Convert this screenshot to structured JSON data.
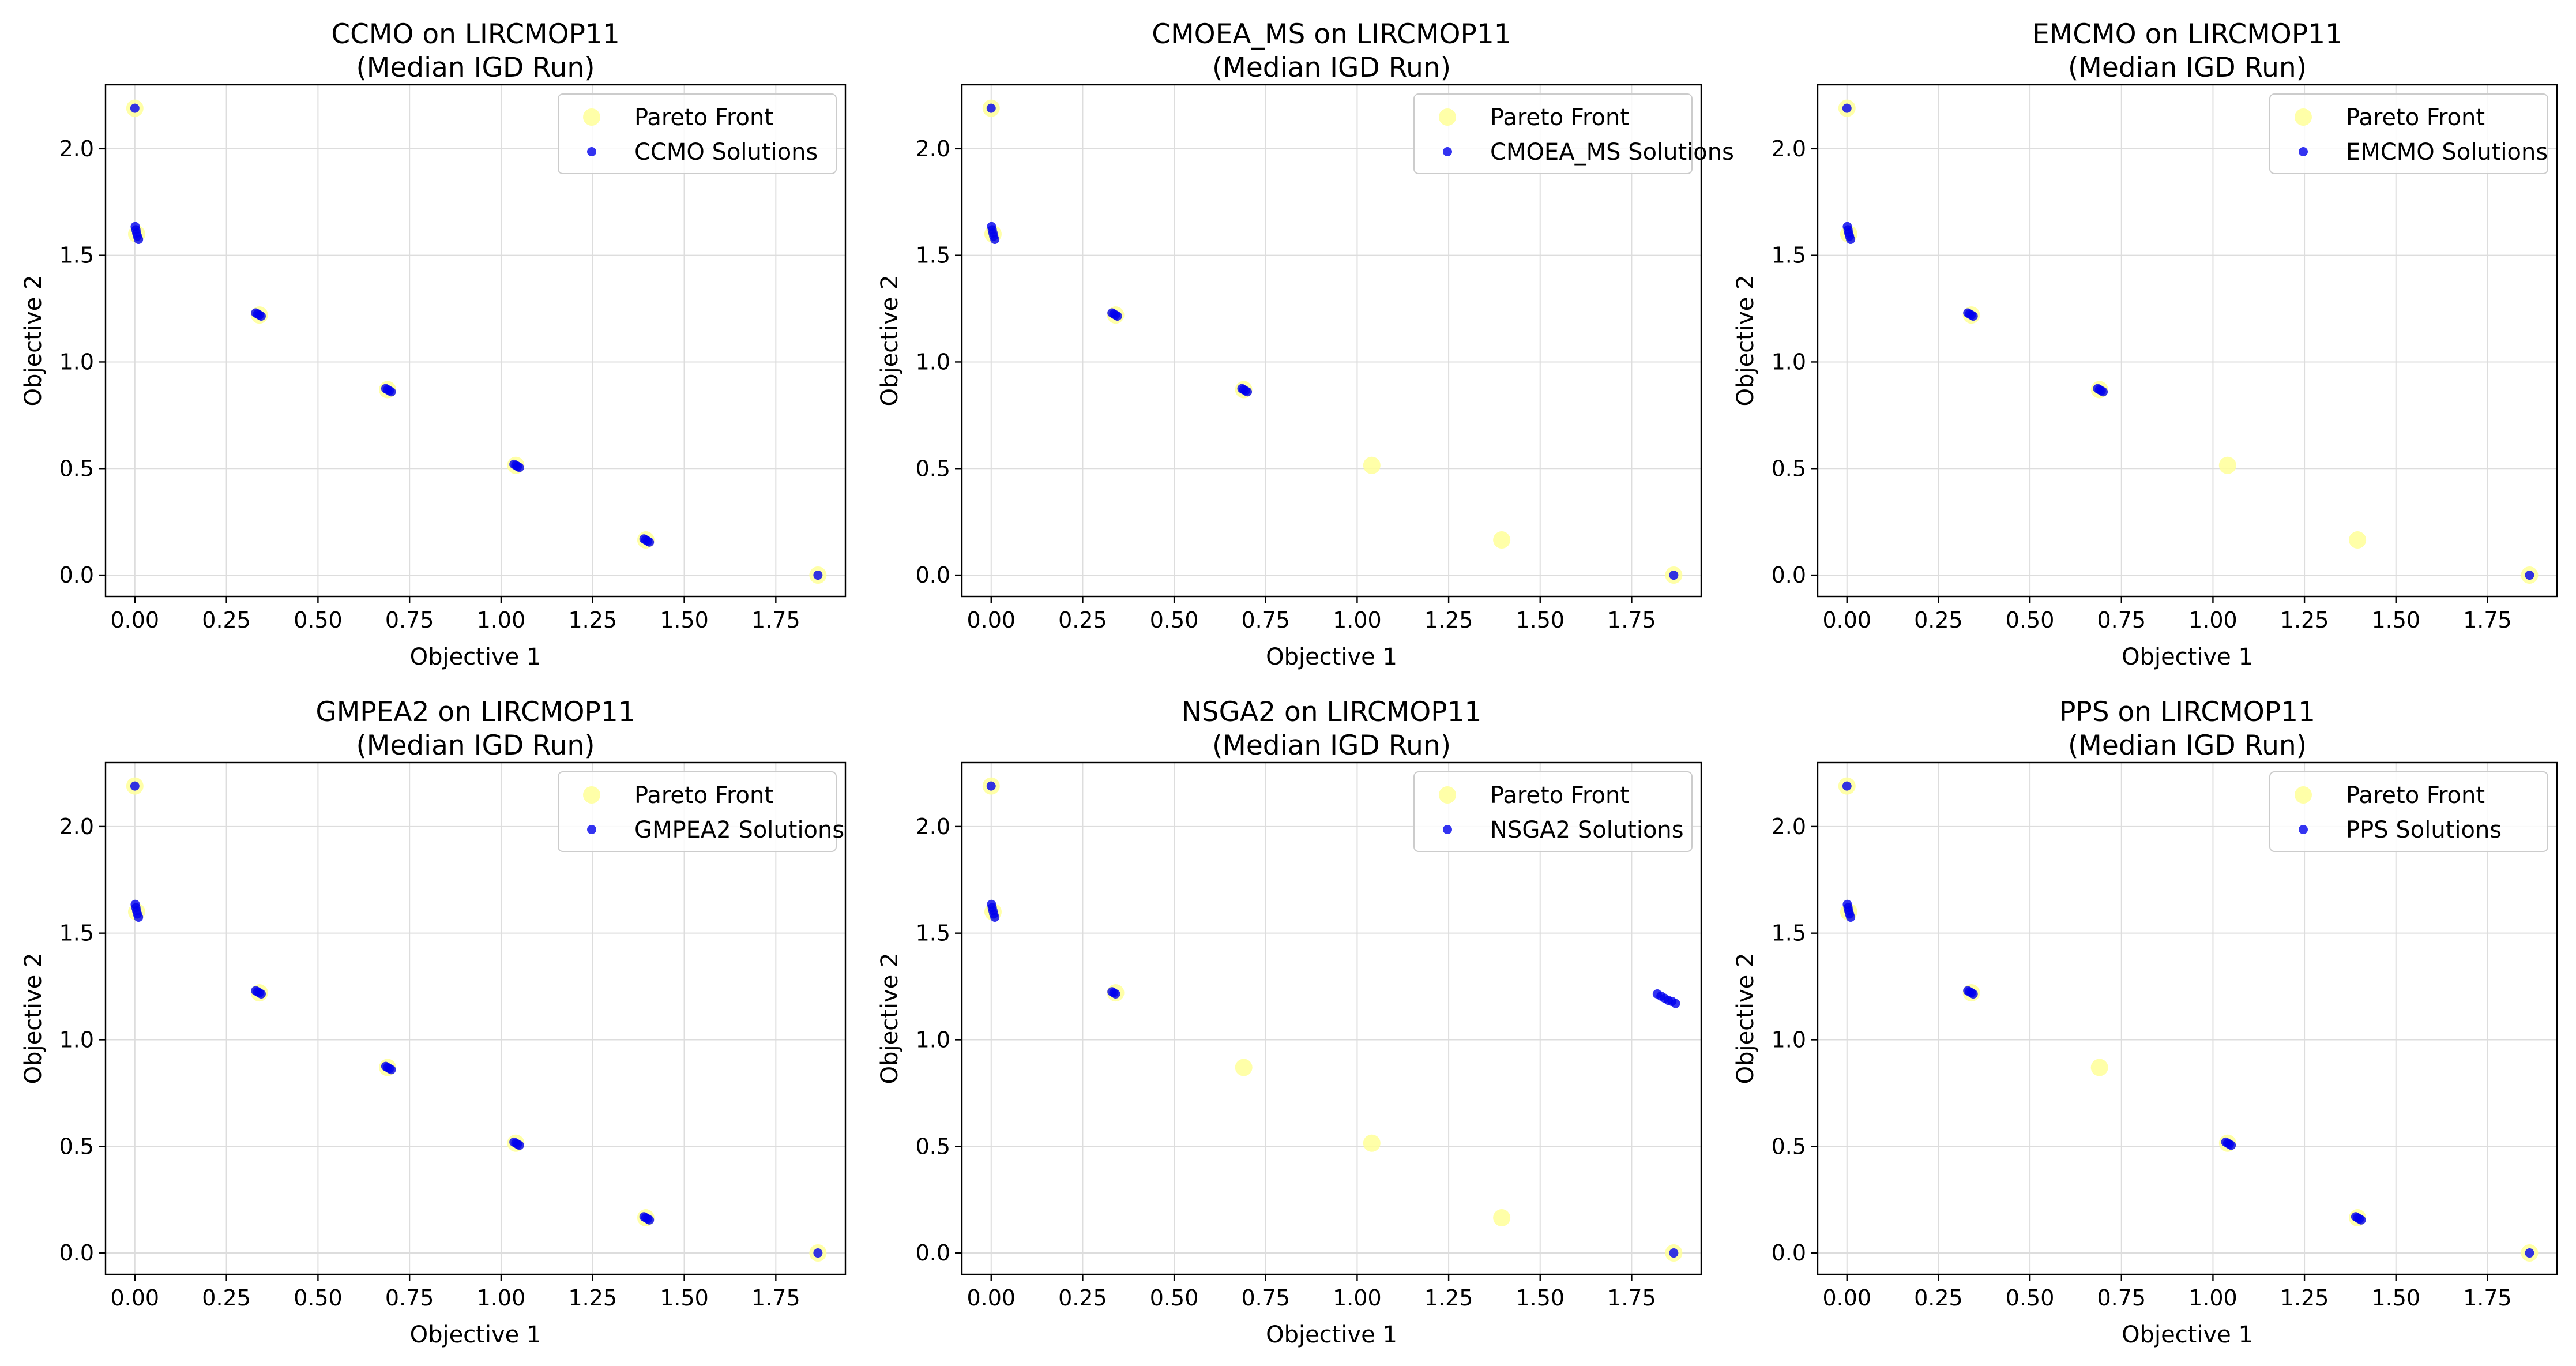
{
  "figure": {
    "background": "#ffffff"
  },
  "colors": {
    "pareto": "#ffff99",
    "solutions": "#0000ee",
    "grid": "#dddddd",
    "axis": "#000000"
  },
  "chart_data": [
    {
      "type": "scatter",
      "title_line1": "CCMO on LIRCMOP11",
      "title_line2": "(Median IGD Run)",
      "xlabel": "Objective 1",
      "ylabel": "Objective 2",
      "xlim": [
        -0.08,
        1.94
      ],
      "ylim": [
        -0.1,
        2.3
      ],
      "xticks": [
        0.0,
        0.25,
        0.5,
        0.75,
        1.0,
        1.25,
        1.5,
        1.75
      ],
      "xtick_labels": [
        "0.00",
        "0.25",
        "0.50",
        "0.75",
        "1.00",
        "1.25",
        "1.50",
        "1.75"
      ],
      "yticks": [
        0.0,
        0.5,
        1.0,
        1.5,
        2.0
      ],
      "ytick_labels": [
        "0.0",
        "0.5",
        "1.0",
        "1.5",
        "2.0"
      ],
      "grid": true,
      "legend_position": "upper right",
      "series": [
        {
          "name": "Pareto Front",
          "color": "#ffff99",
          "marker": "large",
          "x": [
            0.0,
            0.005,
            0.34,
            0.69,
            1.04,
            1.395,
            1.865
          ],
          "y": [
            2.19,
            1.6,
            1.22,
            0.87,
            0.515,
            0.165,
            0.0
          ]
        },
        {
          "name": "CCMO Solutions",
          "color": "#0000ee",
          "marker": "small",
          "x": [
            0.0,
            0.001,
            0.003,
            0.005,
            0.007,
            0.01,
            0.33,
            0.335,
            0.34,
            0.345,
            0.685,
            0.69,
            0.695,
            0.7,
            1.035,
            1.04,
            1.045,
            1.05,
            1.39,
            1.395,
            1.4,
            1.405,
            1.865
          ],
          "y": [
            2.19,
            1.635,
            1.62,
            1.605,
            1.59,
            1.575,
            1.23,
            1.225,
            1.22,
            1.215,
            0.875,
            0.87,
            0.865,
            0.86,
            0.52,
            0.515,
            0.51,
            0.505,
            0.17,
            0.165,
            0.16,
            0.155,
            0.0
          ]
        }
      ]
    },
    {
      "type": "scatter",
      "title_line1": "CMOEA_MS on LIRCMOP11",
      "title_line2": "(Median IGD Run)",
      "xlabel": "Objective 1",
      "ylabel": "Objective 2",
      "xlim": [
        -0.08,
        1.94
      ],
      "ylim": [
        -0.1,
        2.3
      ],
      "xticks": [
        0.0,
        0.25,
        0.5,
        0.75,
        1.0,
        1.25,
        1.5,
        1.75
      ],
      "xtick_labels": [
        "0.00",
        "0.25",
        "0.50",
        "0.75",
        "1.00",
        "1.25",
        "1.50",
        "1.75"
      ],
      "yticks": [
        0.0,
        0.5,
        1.0,
        1.5,
        2.0
      ],
      "ytick_labels": [
        "0.0",
        "0.5",
        "1.0",
        "1.5",
        "2.0"
      ],
      "grid": true,
      "legend_position": "upper right",
      "series": [
        {
          "name": "Pareto Front",
          "color": "#ffff99",
          "marker": "large",
          "x": [
            0.0,
            0.005,
            0.34,
            0.69,
            1.04,
            1.395,
            1.865
          ],
          "y": [
            2.19,
            1.6,
            1.22,
            0.87,
            0.515,
            0.165,
            0.0
          ]
        },
        {
          "name": "CMOEA_MS Solutions",
          "color": "#0000ee",
          "marker": "small",
          "x": [
            0.0,
            0.001,
            0.003,
            0.005,
            0.007,
            0.01,
            0.33,
            0.335,
            0.34,
            0.345,
            0.685,
            0.69,
            0.695,
            0.7,
            1.865
          ],
          "y": [
            2.19,
            1.635,
            1.62,
            1.605,
            1.59,
            1.575,
            1.23,
            1.225,
            1.22,
            1.215,
            0.875,
            0.87,
            0.865,
            0.86,
            0.0
          ]
        }
      ]
    },
    {
      "type": "scatter",
      "title_line1": "EMCMO on LIRCMOP11",
      "title_line2": "(Median IGD Run)",
      "xlabel": "Objective 1",
      "ylabel": "Objective 2",
      "xlim": [
        -0.08,
        1.94
      ],
      "ylim": [
        -0.1,
        2.3
      ],
      "xticks": [
        0.0,
        0.25,
        0.5,
        0.75,
        1.0,
        1.25,
        1.5,
        1.75
      ],
      "xtick_labels": [
        "0.00",
        "0.25",
        "0.50",
        "0.75",
        "1.00",
        "1.25",
        "1.50",
        "1.75"
      ],
      "yticks": [
        0.0,
        0.5,
        1.0,
        1.5,
        2.0
      ],
      "ytick_labels": [
        "0.0",
        "0.5",
        "1.0",
        "1.5",
        "2.0"
      ],
      "grid": true,
      "legend_position": "upper right",
      "series": [
        {
          "name": "Pareto Front",
          "color": "#ffff99",
          "marker": "large",
          "x": [
            0.0,
            0.005,
            0.34,
            0.69,
            1.04,
            1.395,
            1.865
          ],
          "y": [
            2.19,
            1.6,
            1.22,
            0.87,
            0.515,
            0.165,
            0.0
          ]
        },
        {
          "name": "EMCMO Solutions",
          "color": "#0000ee",
          "marker": "small",
          "x": [
            0.0,
            0.001,
            0.003,
            0.005,
            0.007,
            0.01,
            0.33,
            0.335,
            0.34,
            0.345,
            0.685,
            0.69,
            0.695,
            0.7,
            1.865
          ],
          "y": [
            2.19,
            1.635,
            1.62,
            1.605,
            1.59,
            1.575,
            1.23,
            1.225,
            1.22,
            1.215,
            0.875,
            0.87,
            0.865,
            0.86,
            0.0
          ]
        }
      ]
    },
    {
      "type": "scatter",
      "title_line1": "GMPEA2 on LIRCMOP11",
      "title_line2": "(Median IGD Run)",
      "xlabel": "Objective 1",
      "ylabel": "Objective 2",
      "xlim": [
        -0.08,
        1.94
      ],
      "ylim": [
        -0.1,
        2.3
      ],
      "xticks": [
        0.0,
        0.25,
        0.5,
        0.75,
        1.0,
        1.25,
        1.5,
        1.75
      ],
      "xtick_labels": [
        "0.00",
        "0.25",
        "0.50",
        "0.75",
        "1.00",
        "1.25",
        "1.50",
        "1.75"
      ],
      "yticks": [
        0.0,
        0.5,
        1.0,
        1.5,
        2.0
      ],
      "ytick_labels": [
        "0.0",
        "0.5",
        "1.0",
        "1.5",
        "2.0"
      ],
      "grid": true,
      "legend_position": "upper right",
      "series": [
        {
          "name": "Pareto Front",
          "color": "#ffff99",
          "marker": "large",
          "x": [
            0.0,
            0.005,
            0.34,
            0.69,
            1.04,
            1.395,
            1.865
          ],
          "y": [
            2.19,
            1.6,
            1.22,
            0.87,
            0.515,
            0.165,
            0.0
          ]
        },
        {
          "name": "GMPEA2 Solutions",
          "color": "#0000ee",
          "marker": "small",
          "x": [
            0.0,
            0.001,
            0.003,
            0.005,
            0.007,
            0.01,
            0.33,
            0.335,
            0.34,
            0.345,
            0.685,
            0.69,
            0.695,
            0.7,
            1.035,
            1.04,
            1.045,
            1.05,
            1.39,
            1.395,
            1.4,
            1.405,
            1.865
          ],
          "y": [
            2.19,
            1.635,
            1.62,
            1.605,
            1.59,
            1.575,
            1.23,
            1.225,
            1.22,
            1.215,
            0.875,
            0.87,
            0.865,
            0.86,
            0.52,
            0.515,
            0.51,
            0.505,
            0.17,
            0.165,
            0.16,
            0.155,
            0.0
          ]
        }
      ]
    },
    {
      "type": "scatter",
      "title_line1": "NSGA2 on LIRCMOP11",
      "title_line2": "(Median IGD Run)",
      "xlabel": "Objective 1",
      "ylabel": "Objective 2",
      "xlim": [
        -0.08,
        1.94
      ],
      "ylim": [
        -0.1,
        2.3
      ],
      "xticks": [
        0.0,
        0.25,
        0.5,
        0.75,
        1.0,
        1.25,
        1.5,
        1.75
      ],
      "xtick_labels": [
        "0.00",
        "0.25",
        "0.50",
        "0.75",
        "1.00",
        "1.25",
        "1.50",
        "1.75"
      ],
      "yticks": [
        0.0,
        0.5,
        1.0,
        1.5,
        2.0
      ],
      "ytick_labels": [
        "0.0",
        "0.5",
        "1.0",
        "1.5",
        "2.0"
      ],
      "grid": true,
      "legend_position": "upper right",
      "series": [
        {
          "name": "Pareto Front",
          "color": "#ffff99",
          "marker": "large",
          "x": [
            0.0,
            0.005,
            0.34,
            0.69,
            1.04,
            1.395,
            1.865
          ],
          "y": [
            2.19,
            1.6,
            1.22,
            0.87,
            0.515,
            0.165,
            0.0
          ]
        },
        {
          "name": "NSGA2 Solutions",
          "color": "#0000ee",
          "marker": "small",
          "x": [
            0.0,
            0.001,
            0.003,
            0.005,
            0.007,
            0.01,
            0.33,
            0.335,
            0.34,
            1.82,
            1.83,
            1.84,
            1.85,
            1.86,
            1.87,
            1.865
          ],
          "y": [
            2.19,
            1.635,
            1.62,
            1.605,
            1.59,
            1.575,
            1.225,
            1.22,
            1.215,
            1.215,
            1.205,
            1.195,
            1.185,
            1.18,
            1.17,
            0.0
          ]
        }
      ]
    },
    {
      "type": "scatter",
      "title_line1": "PPS on LIRCMOP11",
      "title_line2": "(Median IGD Run)",
      "xlabel": "Objective 1",
      "ylabel": "Objective 2",
      "xlim": [
        -0.08,
        1.94
      ],
      "ylim": [
        -0.1,
        2.3
      ],
      "xticks": [
        0.0,
        0.25,
        0.5,
        0.75,
        1.0,
        1.25,
        1.5,
        1.75
      ],
      "xtick_labels": [
        "0.00",
        "0.25",
        "0.50",
        "0.75",
        "1.00",
        "1.25",
        "1.50",
        "1.75"
      ],
      "yticks": [
        0.0,
        0.5,
        1.0,
        1.5,
        2.0
      ],
      "ytick_labels": [
        "0.0",
        "0.5",
        "1.0",
        "1.5",
        "2.0"
      ],
      "grid": true,
      "legend_position": "upper right",
      "series": [
        {
          "name": "Pareto Front",
          "color": "#ffff99",
          "marker": "large",
          "x": [
            0.0,
            0.005,
            0.34,
            0.69,
            1.04,
            1.395,
            1.865
          ],
          "y": [
            2.19,
            1.6,
            1.22,
            0.87,
            0.515,
            0.165,
            0.0
          ]
        },
        {
          "name": "PPS Solutions",
          "color": "#0000ee",
          "marker": "small",
          "x": [
            0.0,
            0.001,
            0.003,
            0.005,
            0.007,
            0.01,
            0.33,
            0.335,
            0.34,
            0.345,
            1.035,
            1.04,
            1.045,
            1.05,
            1.39,
            1.395,
            1.4,
            1.405,
            1.865
          ],
          "y": [
            2.19,
            1.635,
            1.62,
            1.605,
            1.59,
            1.575,
            1.23,
            1.225,
            1.22,
            1.215,
            0.52,
            0.515,
            0.51,
            0.505,
            0.17,
            0.165,
            0.16,
            0.155,
            0.0
          ]
        }
      ]
    }
  ]
}
